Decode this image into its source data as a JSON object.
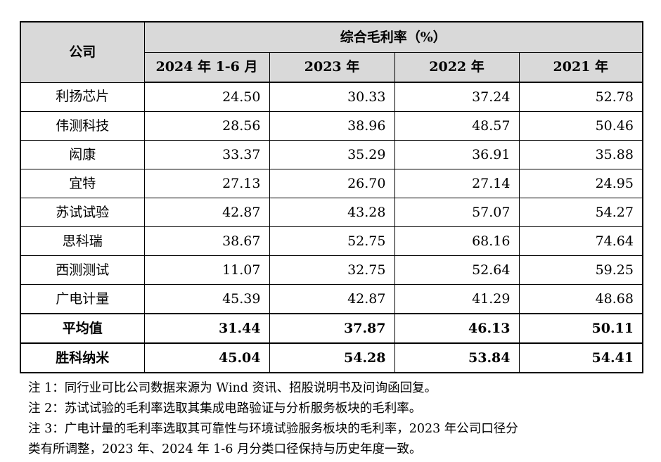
{
  "table": {
    "company_header": "公司",
    "group_header": "综合毛利率（%）",
    "columns": [
      "2024 年 1-6 月",
      "2023 年",
      "2022 年",
      "2021 年"
    ],
    "rows": [
      {
        "name": "利扬芯片",
        "values": [
          "24.50",
          "30.33",
          "37.24",
          "52.78"
        ]
      },
      {
        "name": "伟测科技",
        "values": [
          "28.56",
          "38.96",
          "48.57",
          "50.46"
        ]
      },
      {
        "name": "闳康",
        "values": [
          "33.37",
          "35.29",
          "36.91",
          "35.88"
        ]
      },
      {
        "name": "宜特",
        "values": [
          "27.13",
          "26.70",
          "27.14",
          "24.95"
        ]
      },
      {
        "name": "苏试试验",
        "values": [
          "42.87",
          "43.28",
          "57.07",
          "54.27"
        ]
      },
      {
        "name": "思科瑞",
        "values": [
          "38.67",
          "52.75",
          "68.16",
          "74.64"
        ]
      },
      {
        "name": "西测测试",
        "values": [
          "11.07",
          "32.75",
          "52.64",
          "59.25"
        ]
      },
      {
        "name": "广电计量",
        "values": [
          "45.39",
          "42.87",
          "41.29",
          "48.68"
        ]
      }
    ],
    "average": {
      "name": "平均值",
      "values": [
        "31.44",
        "37.87",
        "46.13",
        "50.11"
      ]
    },
    "company": {
      "name": "胜科纳米",
      "values": [
        "45.04",
        "54.28",
        "53.84",
        "54.41"
      ]
    }
  },
  "notes": [
    "注 1：同行业可比公司数据来源为 Wind 资讯、招股说明书及问询函回复。",
    "注 2：苏试试验的毛利率选取其集成电路验证与分析服务板块的毛利率。",
    "注 3：广电计量的毛利率选取其可靠性与环境试验服务板块的毛利率，2023 年公司口径分",
    "类有所调整，2023 年、2024 年 1-6 月分类口径保持与历史年度一致。"
  ]
}
